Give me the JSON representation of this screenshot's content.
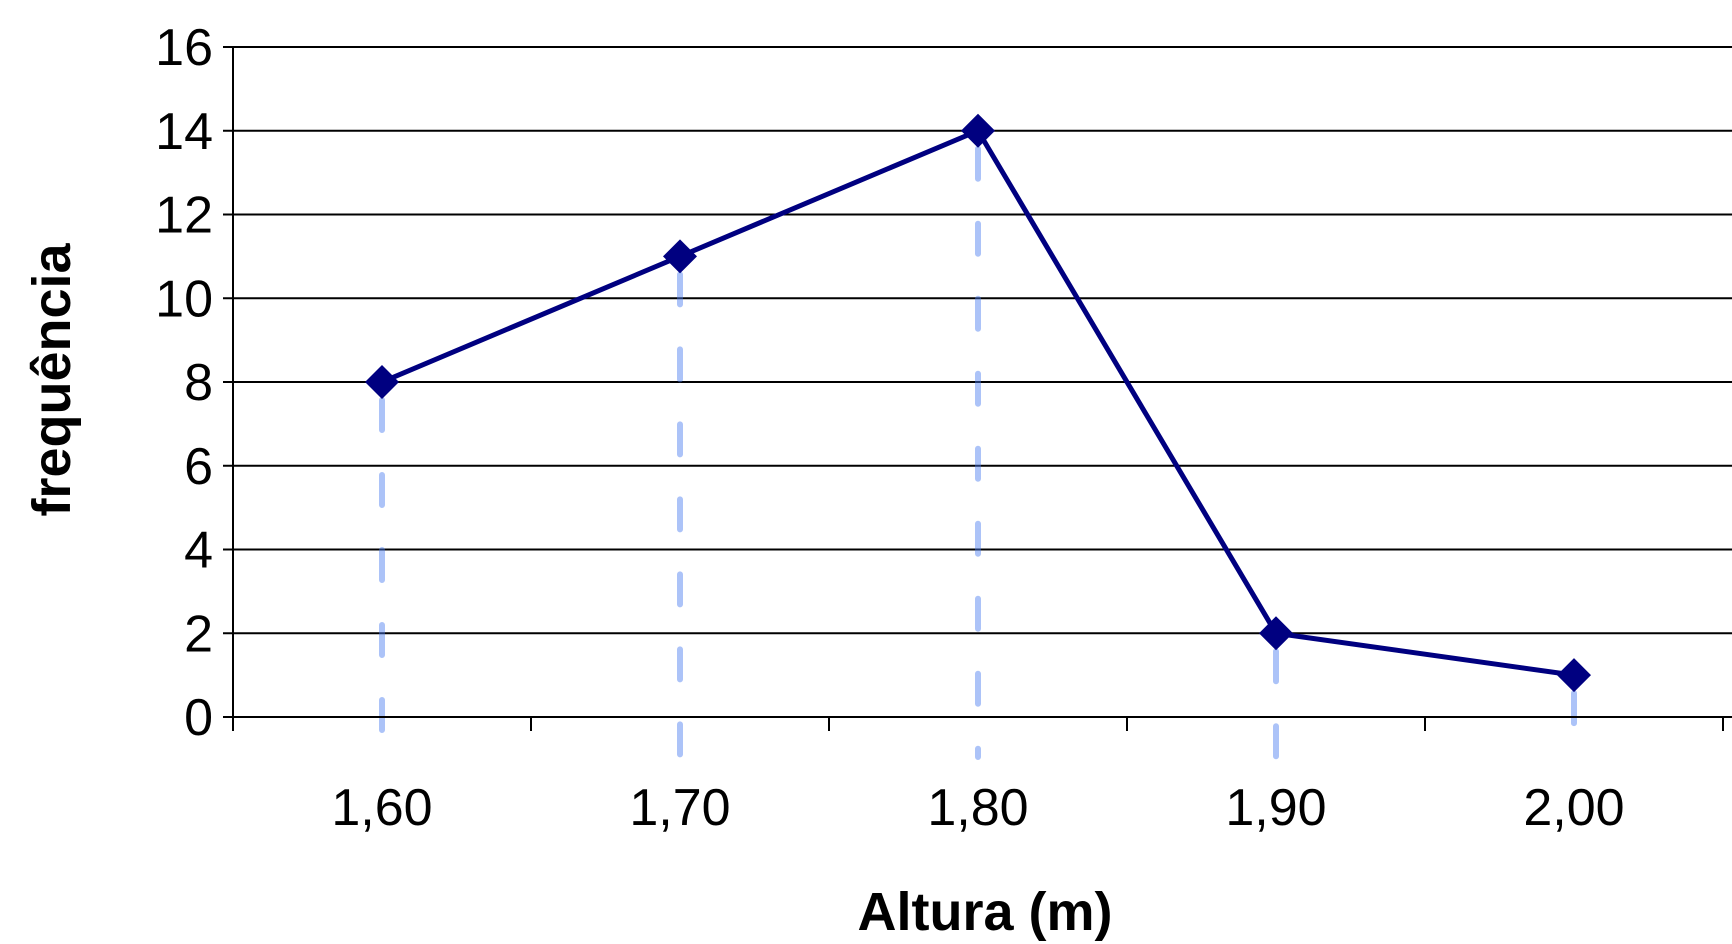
{
  "chart_data": {
    "type": "line",
    "title": "",
    "xlabel": "Altura (m)",
    "ylabel": "frequência",
    "categories": [
      "1,60",
      "1,70",
      "1,80",
      "1,90",
      "2,00"
    ],
    "series": [
      {
        "values": [
          8,
          11,
          14,
          2,
          1
        ]
      }
    ],
    "ylim": [
      0,
      16
    ],
    "yticks": [
      "0",
      "2",
      "4",
      "6",
      "8",
      "10",
      "12",
      "14",
      "16"
    ],
    "grid": "horizontal",
    "colors": {
      "line": "#000080",
      "marker": "#000080",
      "grid": "#000000",
      "axis": "#000000",
      "dropline": "#4a7cf0"
    }
  }
}
